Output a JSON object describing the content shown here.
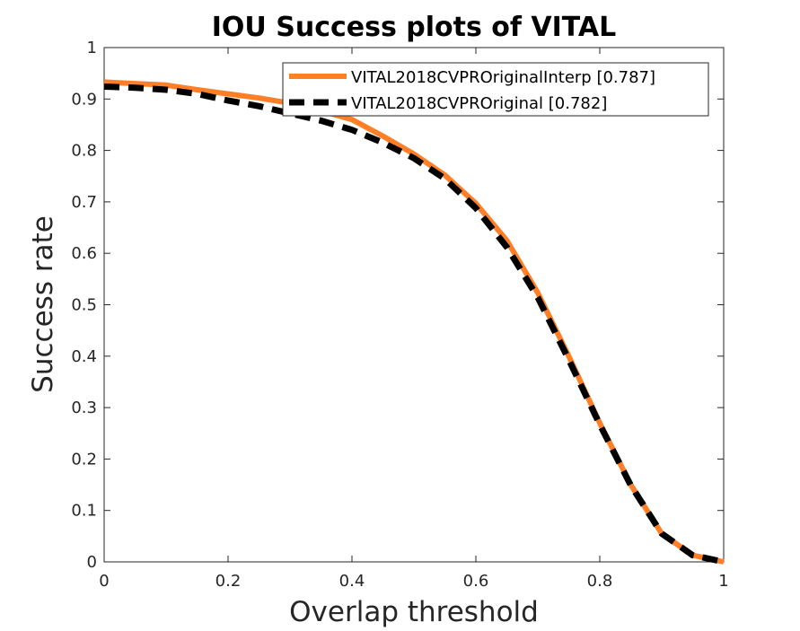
{
  "chart_data": {
    "type": "line",
    "title": "IOU Success plots of VITAL",
    "xlabel": "Overlap threshold",
    "ylabel": "Success rate",
    "xlim": [
      0,
      1
    ],
    "ylim": [
      0,
      1
    ],
    "xticks": [
      "0",
      "0.2",
      "0.4",
      "0.6",
      "0.8",
      "1"
    ],
    "yticks": [
      "0",
      "0.1",
      "0.2",
      "0.3",
      "0.4",
      "0.5",
      "0.6",
      "0.7",
      "0.8",
      "0.9",
      "1"
    ],
    "grid": false,
    "legend_position": "top-right",
    "x": [
      0,
      0.05,
      0.1,
      0.15,
      0.2,
      0.25,
      0.3,
      0.35,
      0.4,
      0.45,
      0.5,
      0.55,
      0.6,
      0.65,
      0.7,
      0.75,
      0.8,
      0.85,
      0.9,
      0.95,
      1.0
    ],
    "series": [
      {
        "name": "VITAL2018CVPROriginalInterp [0.787]",
        "color": "#ff7f27",
        "style": "solid",
        "values": [
          0.933,
          0.93,
          0.927,
          0.918,
          0.91,
          0.902,
          0.892,
          0.877,
          0.86,
          0.828,
          0.793,
          0.752,
          0.697,
          0.625,
          0.523,
          0.4,
          0.27,
          0.15,
          0.055,
          0.013,
          0.0
        ]
      },
      {
        "name": "VITAL2018CVPROriginal [0.782]",
        "color": "#000000",
        "style": "dashed",
        "values": [
          0.924,
          0.922,
          0.918,
          0.91,
          0.897,
          0.886,
          0.872,
          0.858,
          0.84,
          0.815,
          0.785,
          0.745,
          0.688,
          0.612,
          0.514,
          0.393,
          0.267,
          0.149,
          0.055,
          0.013,
          0.0
        ]
      }
    ]
  }
}
